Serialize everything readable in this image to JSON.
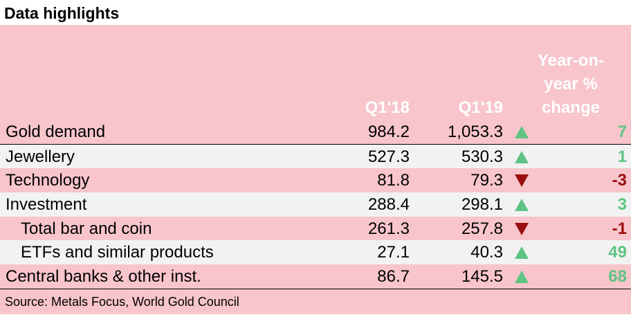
{
  "title": "Data highlights",
  "header": {
    "q1_18": "Q1'18",
    "q1_19": "Q1'19",
    "yoy": "Year-on-year % change"
  },
  "rows": [
    {
      "label": "Gold demand",
      "q1_18": "984.2",
      "q1_19": "1,053.3",
      "direction": "up",
      "change": "7",
      "indent": false
    },
    {
      "label": "Jewellery",
      "q1_18": "527.3",
      "q1_19": "530.3",
      "direction": "up",
      "change": "1",
      "indent": false
    },
    {
      "label": "Technology",
      "q1_18": "81.8",
      "q1_19": "79.3",
      "direction": "down",
      "change": "-3",
      "indent": false
    },
    {
      "label": "Investment",
      "q1_18": "288.4",
      "q1_19": "298.1",
      "direction": "up",
      "change": "3",
      "indent": false
    },
    {
      "label": "Total bar and coin",
      "q1_18": "261.3",
      "q1_19": "257.8",
      "direction": "down",
      "change": "-1",
      "indent": true
    },
    {
      "label": "ETFs and similar products",
      "q1_18": "27.1",
      "q1_19": "40.3",
      "direction": "up",
      "change": "49",
      "indent": true
    },
    {
      "label": "Central banks & other inst.",
      "q1_18": "86.7",
      "q1_19": "145.5",
      "direction": "up",
      "change": "68",
      "indent": false
    }
  ],
  "colors": {
    "up": "#5fc483",
    "down": "#9b0e0e",
    "pink": "#f7c5cb",
    "grey": "#f2f2f2"
  },
  "icons": {
    "up": "triangle-up-icon",
    "down": "triangle-down-icon"
  },
  "source": "Source: Metals Focus, World Gold Council"
}
